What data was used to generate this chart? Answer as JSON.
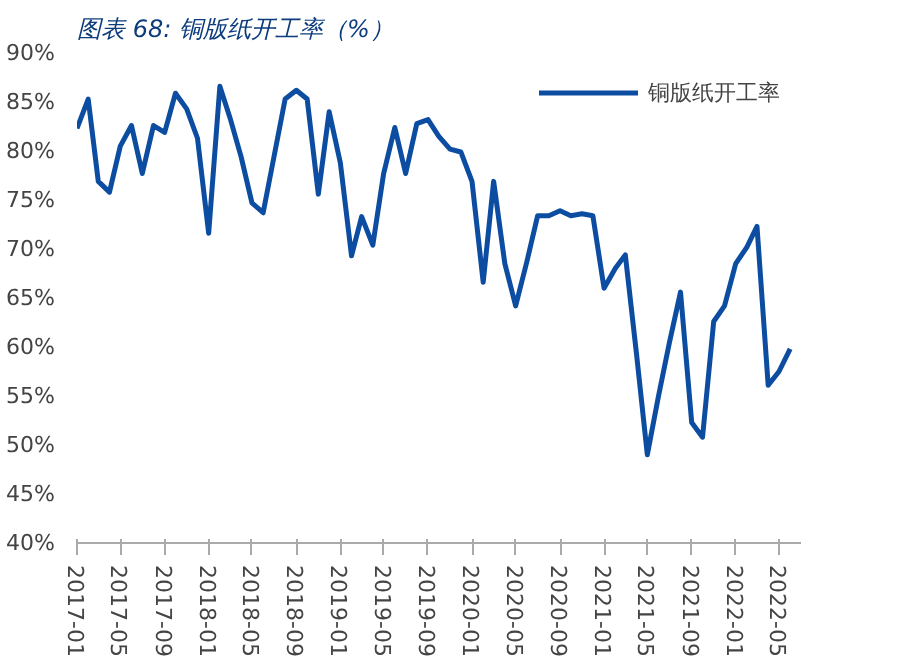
{
  "chart_data": {
    "type": "line",
    "title": "图表 68:  铜版纸开工率（%）",
    "x": [
      "2017-01",
      "2017-02",
      "2017-03",
      "2017-04",
      "2017-05",
      "2017-06",
      "2017-07",
      "2017-08",
      "2017-09",
      "2017-10",
      "2017-11",
      "2017-12",
      "2018-01",
      "2018-02",
      "2018-03",
      "2018-04",
      "2018-05",
      "2018-06",
      "2018-07",
      "2018-08",
      "2018-09",
      "2018-10",
      "2018-11",
      "2018-12",
      "2019-01",
      "2019-02",
      "2019-03",
      "2019-04",
      "2019-05",
      "2019-06",
      "2019-07",
      "2019-08",
      "2019-09",
      "2019-10",
      "2019-11",
      "2019-12",
      "2020-01",
      "2020-02",
      "2020-03",
      "2020-04",
      "2020-05",
      "2020-06",
      "2020-07",
      "2020-08",
      "2020-09",
      "2020-10",
      "2020-11",
      "2020-12",
      "2021-01",
      "2021-02",
      "2021-03",
      "2021-04",
      "2021-05",
      "2021-06",
      "2021-07",
      "2021-08",
      "2021-09",
      "2021-10",
      "2021-11",
      "2021-12",
      "2022-01",
      "2022-02",
      "2022-03",
      "2022-04",
      "2022-05",
      "2022-06"
    ],
    "series": [
      {
        "name": "铜版纸开工率",
        "color": "#0c4da2",
        "values": [
          82.3,
          85.3,
          76.9,
          75.8,
          80.5,
          82.6,
          77.7,
          82.6,
          81.9,
          85.9,
          84.3,
          81.3,
          71.6,
          86.6,
          83.4,
          79.4,
          74.7,
          73.7,
          79.4,
          85.3,
          86.2,
          85.3,
          75.6,
          84.0,
          78.8,
          69.3,
          73.3,
          70.4,
          77.7,
          82.4,
          77.7,
          82.8,
          83.2,
          81.5,
          80.2,
          79.9,
          76.9,
          66.6,
          76.9,
          68.5,
          64.2,
          68.7,
          73.4,
          73.4,
          73.9,
          73.4,
          73.6,
          73.4,
          66.0,
          68.0,
          69.4,
          59.3,
          49.0,
          55.0,
          60.4,
          65.6,
          52.3,
          50.8,
          62.6,
          64.2,
          68.5,
          70.2,
          72.3,
          56.1,
          57.5,
          59.8
        ]
      }
    ],
    "xlim": [
      "2017-01",
      "2022-07"
    ],
    "xticks": [
      {
        "value": "2017-01",
        "label": "2017-01"
      },
      {
        "value": "2017-05",
        "label": "2017-05"
      },
      {
        "value": "2017-09",
        "label": "2017-09"
      },
      {
        "value": "2018-01",
        "label": "2018-01"
      },
      {
        "value": "2018-05",
        "label": "2018-05"
      },
      {
        "value": "2018-09",
        "label": "2018-09"
      },
      {
        "value": "2019-01",
        "label": "2019-01"
      },
      {
        "value": "2019-05",
        "label": "2019-05"
      },
      {
        "value": "2019-09",
        "label": "2019-09"
      },
      {
        "value": "2020-01",
        "label": "2020-01"
      },
      {
        "value": "2020-05",
        "label": "2020-05"
      },
      {
        "value": "2020-09",
        "label": "2020-09"
      },
      {
        "value": "2021-01",
        "label": "2021-01"
      },
      {
        "value": "2021-05",
        "label": "2021-05"
      },
      {
        "value": "2021-09",
        "label": "2021-09"
      },
      {
        "value": "2022-01",
        "label": "2022-01"
      },
      {
        "value": "2022-05",
        "label": "2022-05"
      }
    ],
    "ylim": [
      40,
      90
    ],
    "yticks": [
      {
        "value": 40,
        "label": "40%"
      },
      {
        "value": 45,
        "label": "45%"
      },
      {
        "value": 50,
        "label": "50%"
      },
      {
        "value": 55,
        "label": "55%"
      },
      {
        "value": 60,
        "label": "60%"
      },
      {
        "value": 65,
        "label": "65%"
      },
      {
        "value": 70,
        "label": "70%"
      },
      {
        "value": 75,
        "label": "75%"
      },
      {
        "value": 80,
        "label": "80%"
      },
      {
        "value": 85,
        "label": "85%"
      },
      {
        "value": 90,
        "label": "90%"
      }
    ],
    "grid": false,
    "legend": "top right",
    "line_style": "solid"
  }
}
